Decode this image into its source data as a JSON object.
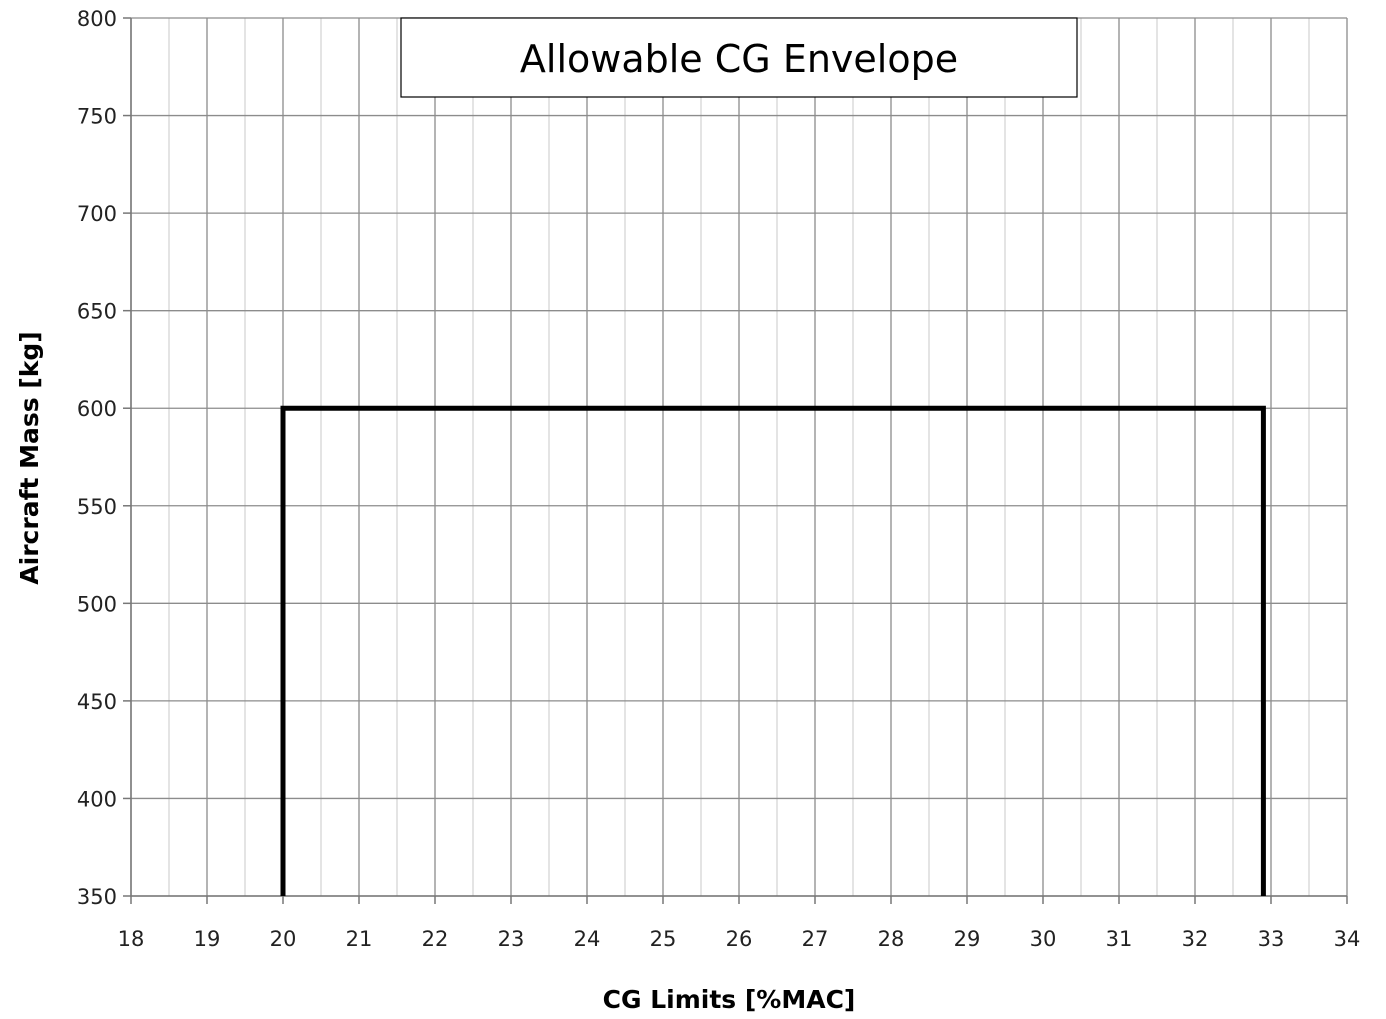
{
  "chart_data": {
    "type": "line",
    "title": "Allowable CG Envelope",
    "xlabel": "CG Limits [%MAC]",
    "ylabel": "Aircraft Mass [kg]",
    "xlim": [
      18,
      34
    ],
    "ylim": [
      350,
      800
    ],
    "x_ticks": [
      18,
      19,
      20,
      21,
      22,
      23,
      24,
      25,
      26,
      27,
      28,
      29,
      30,
      31,
      32,
      33,
      34
    ],
    "y_ticks": [
      350,
      400,
      450,
      500,
      550,
      600,
      650,
      700,
      750,
      800
    ],
    "grid": true,
    "series": [
      {
        "color": "#000000",
        "points": [
          {
            "x": 20,
            "y": 350
          },
          {
            "x": 20,
            "y": 600
          },
          {
            "x": 32.9,
            "y": 600
          },
          {
            "x": 32.9,
            "y": 350
          }
        ]
      }
    ]
  }
}
